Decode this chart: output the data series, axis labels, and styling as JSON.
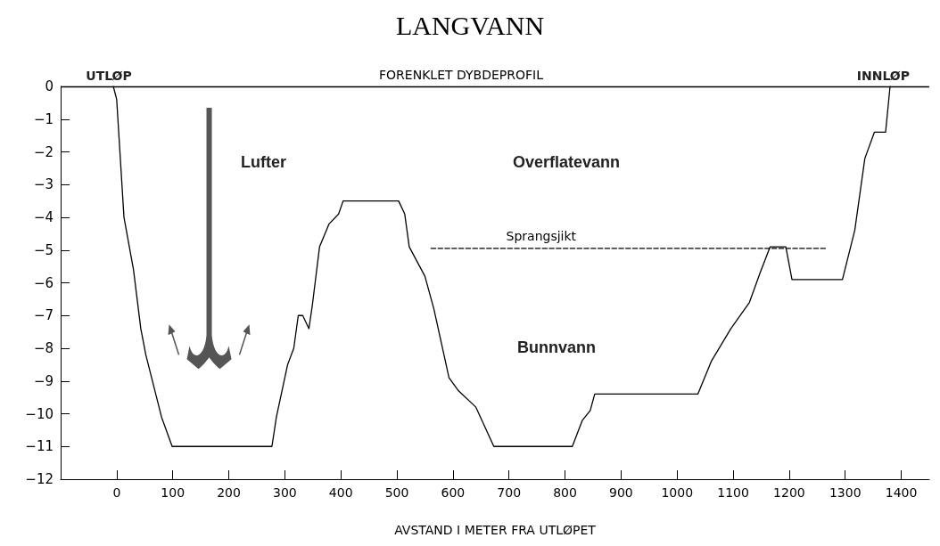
{
  "chart_data": {
    "type": "line",
    "title": "LANGVANN",
    "subtitle": "FORENKLET DYBDEPROFIL",
    "xlabel": "AVSTAND I METER FRA UTLØPET",
    "series": [
      {
        "color": "#000000",
        "x": [
          -6,
          0,
          13,
          30,
          43,
          52,
          80,
          99,
          277,
          285,
          305,
          316,
          324,
          332,
          343,
          349,
          362,
          379,
          396,
          404,
          503,
          514,
          522,
          550,
          566,
          593,
          610,
          641,
          673,
          813,
          831,
          845,
          853,
          1037,
          1061,
          1096,
          1129,
          1148,
          1166,
          1194,
          1205,
          1295,
          1317,
          1335,
          1352,
          1372,
          1380
        ],
        "values": [
          0,
          -0.4,
          -4.0,
          -5.6,
          -7.4,
          -8.2,
          -10.1,
          -11,
          -11,
          -10.1,
          -8.5,
          -8.0,
          -7.0,
          -7.0,
          -7.4,
          -6.7,
          -4.9,
          -4.2,
          -3.9,
          -3.5,
          -3.5,
          -3.9,
          -4.9,
          -5.8,
          -6.8,
          -8.9,
          -9.3,
          -9.8,
          -11,
          -11,
          -10.2,
          -9.9,
          -9.4,
          -9.4,
          -8.4,
          -7.4,
          -6.6,
          -5.7,
          -4.9,
          -4.9,
          -5.9,
          -5.9,
          -4.4,
          -2.2,
          -1.4,
          -1.4,
          0
        ]
      },
      {
        "color": "#000000",
        "line_style": "dashed",
        "x": [
          561,
          1266
        ],
        "values": [
          -4.95,
          -4.95
        ]
      }
    ],
    "ref_lines": [
      {
        "axis": "y",
        "value": 0,
        "color": "#000000"
      }
    ],
    "annotations": [
      {
        "text": "UTLØP",
        "x": -55,
        "y": 0
      },
      {
        "text": "INNLØP",
        "x": 1415,
        "y": 0
      },
      "Lufter",
      "Overflatevann",
      {
        "text": "Sprangsjikt",
        "x": 695,
        "y": -4.95
      },
      "Bunnvann"
    ],
    "xlim": [
      -100,
      1450
    ],
    "xticks": [
      0,
      100,
      200,
      300,
      400,
      500,
      600,
      700,
      800,
      900,
      1000,
      1100,
      1200,
      1300,
      1400
    ],
    "ylim": [
      -12,
      0
    ],
    "yticks": [
      -12,
      -11,
      -10,
      -9,
      -8,
      -7,
      -6,
      -5,
      -4,
      -3,
      -2,
      -1,
      0
    ],
    "grid": false,
    "marker": "none",
    "line_style": "solid"
  }
}
